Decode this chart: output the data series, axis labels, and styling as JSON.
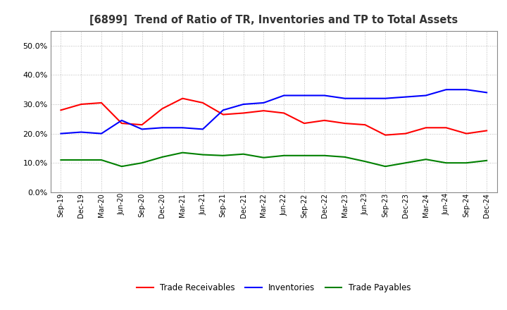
{
  "title": "[6899]  Trend of Ratio of TR, Inventories and TP to Total Assets",
  "x_labels": [
    "Sep-19",
    "Dec-19",
    "Mar-20",
    "Jun-20",
    "Sep-20",
    "Dec-20",
    "Mar-21",
    "Jun-21",
    "Sep-21",
    "Dec-21",
    "Mar-22",
    "Jun-22",
    "Sep-22",
    "Dec-22",
    "Mar-23",
    "Jun-23",
    "Sep-23",
    "Dec-23",
    "Mar-24",
    "Jun-24",
    "Sep-24",
    "Dec-24"
  ],
  "trade_receivables": [
    0.28,
    0.3,
    0.305,
    0.235,
    0.23,
    0.285,
    0.32,
    0.305,
    0.265,
    0.27,
    0.278,
    0.27,
    0.235,
    0.245,
    0.235,
    0.23,
    0.195,
    0.2,
    0.22,
    0.22,
    0.2,
    0.21
  ],
  "inventories": [
    0.2,
    0.205,
    0.2,
    0.245,
    0.215,
    0.22,
    0.22,
    0.215,
    0.28,
    0.3,
    0.305,
    0.33,
    0.33,
    0.33,
    0.32,
    0.32,
    0.32,
    0.325,
    0.33,
    0.35,
    0.35,
    0.34
  ],
  "trade_payables": [
    0.11,
    0.11,
    0.11,
    0.088,
    0.1,
    0.12,
    0.135,
    0.128,
    0.125,
    0.13,
    0.118,
    0.125,
    0.125,
    0.125,
    0.12,
    0.105,
    0.088,
    0.1,
    0.112,
    0.1,
    0.1,
    0.108
  ],
  "tr_color": "#ff0000",
  "inv_color": "#0000ff",
  "tp_color": "#008000",
  "ylim": [
    0.0,
    0.55
  ],
  "yticks": [
    0.0,
    0.1,
    0.2,
    0.3,
    0.4,
    0.5
  ],
  "background_color": "#ffffff",
  "grid_color": "#bbbbbb",
  "legend_labels": [
    "Trade Receivables",
    "Inventories",
    "Trade Payables"
  ],
  "title_color": "#333333"
}
